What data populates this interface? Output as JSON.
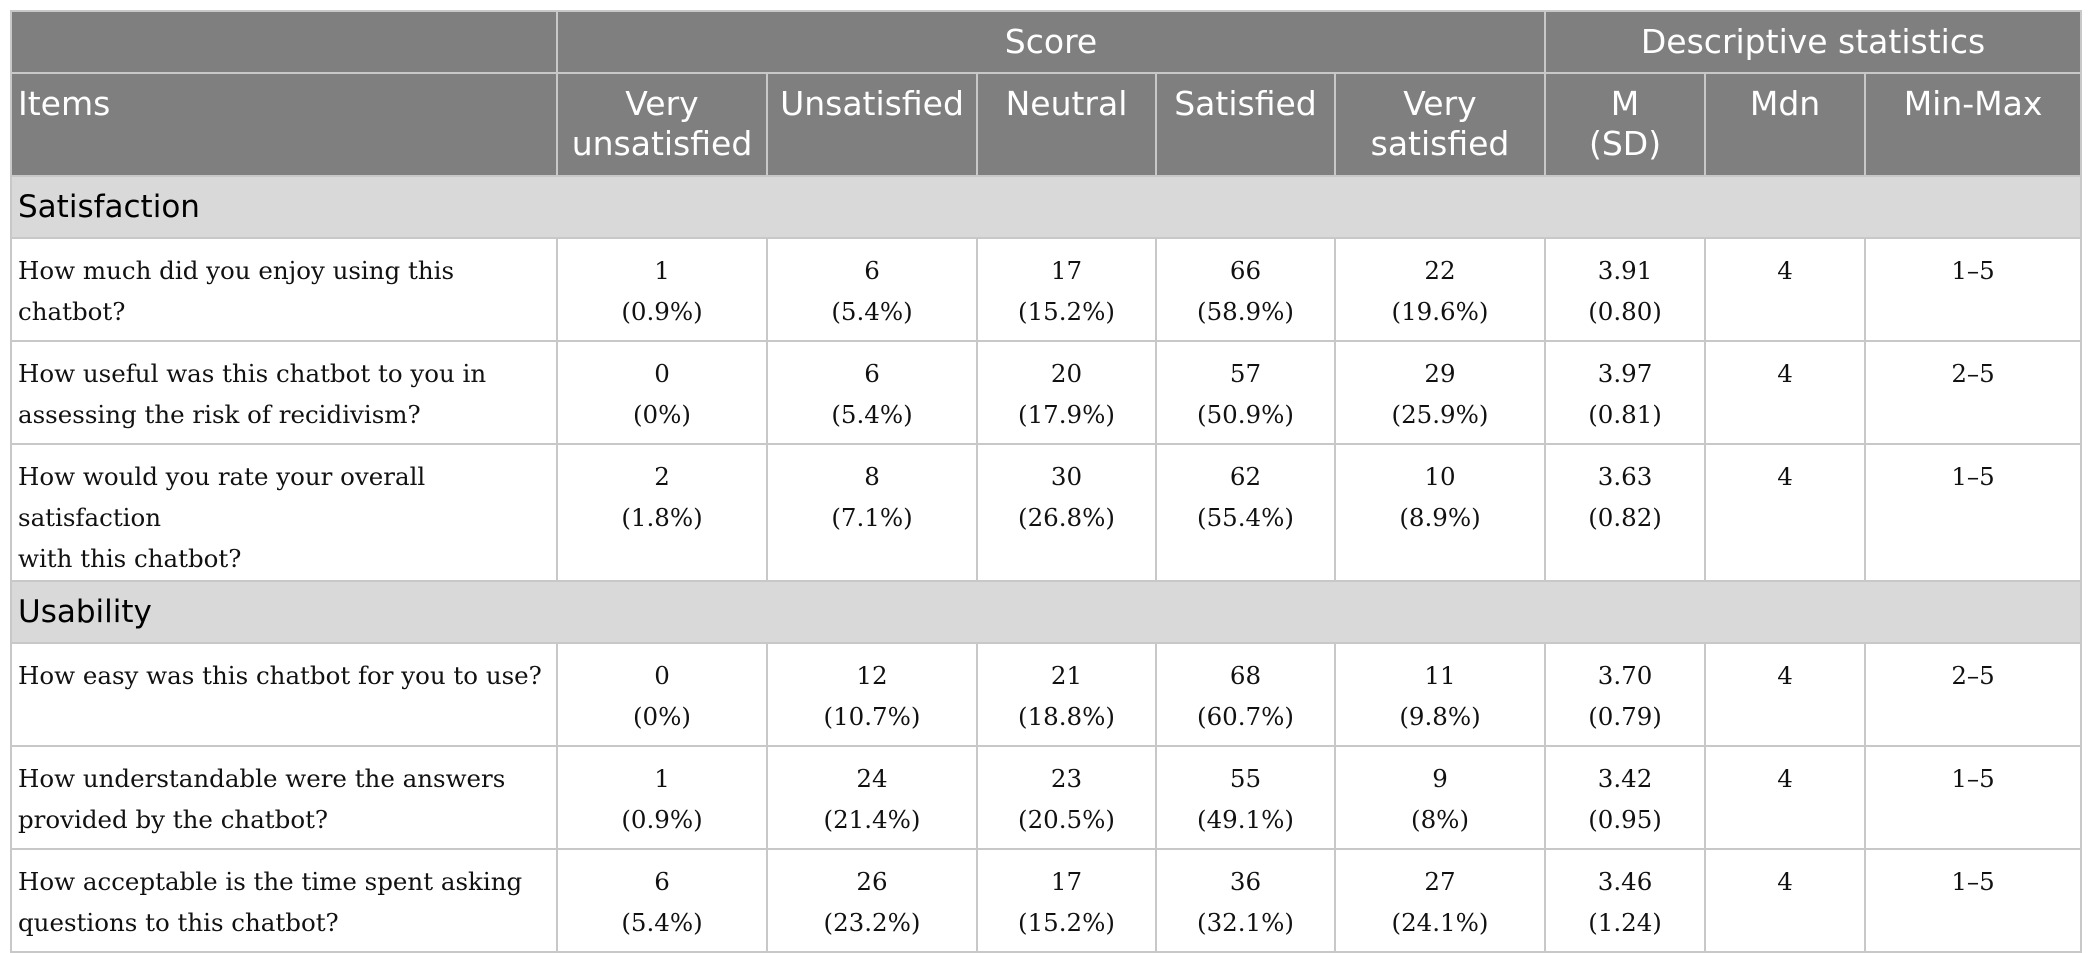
{
  "header": {
    "items": "Items",
    "score": "Score",
    "descriptive": "Descriptive statistics",
    "very_unsatisfied": [
      "Very",
      "unsatisfied"
    ],
    "unsatisfied": "Unsatisfied",
    "neutral": "Neutral",
    "satisfied": "Satisfied",
    "very_satisfied": [
      "Very",
      "satisfied"
    ],
    "m_sd": [
      "M",
      "(SD)"
    ],
    "mdn": "Mdn",
    "min_max": "Min-Max"
  },
  "sections": [
    {
      "title": "Satisfaction",
      "rows": [
        {
          "item": [
            "How much did you enjoy using this chatbot?"
          ],
          "scores": [
            [
              "1",
              "(0.9%)"
            ],
            [
              "6",
              "(5.4%)"
            ],
            [
              "17",
              "(15.2%)"
            ],
            [
              "66",
              "(58.9%)"
            ],
            [
              "22",
              "(19.6%)"
            ]
          ],
          "m": [
            "3.91",
            "(0.80)"
          ],
          "mdn": "4",
          "minmax": "1–5"
        },
        {
          "item": [
            "How useful was this chatbot to you in",
            "assessing the risk of recidivism?"
          ],
          "scores": [
            [
              "0",
              "(0%)"
            ],
            [
              "6",
              "(5.4%)"
            ],
            [
              "20",
              "(17.9%)"
            ],
            [
              "57",
              "(50.9%)"
            ],
            [
              "29",
              "(25.9%)"
            ]
          ],
          "m": [
            "3.97",
            "(0.81)"
          ],
          "mdn": "4",
          "minmax": "2–5"
        },
        {
          "item": [
            "How would you rate your overall satisfaction",
            "with this chatbot?"
          ],
          "scores": [
            [
              "2",
              "(1.8%)"
            ],
            [
              "8",
              "(7.1%)"
            ],
            [
              "30",
              "(26.8%)"
            ],
            [
              "62",
              "(55.4%)"
            ],
            [
              "10",
              "(8.9%)"
            ]
          ],
          "m": [
            "3.63",
            "(0.82)"
          ],
          "mdn": "4",
          "minmax": "1–5"
        }
      ]
    },
    {
      "title": "Usability",
      "rows": [
        {
          "item": [
            "How easy was this chatbot for you to use?"
          ],
          "scores": [
            [
              "0",
              "(0%)"
            ],
            [
              "12",
              "(10.7%)"
            ],
            [
              "21",
              "(18.8%)"
            ],
            [
              "68",
              "(60.7%)"
            ],
            [
              "11",
              "(9.8%)"
            ]
          ],
          "m": [
            "3.70",
            "(0.79)"
          ],
          "mdn": "4",
          "minmax": "2–5"
        },
        {
          "item": [
            "How understandable were the answers",
            "provided by the chatbot?"
          ],
          "scores": [
            [
              "1",
              "(0.9%)"
            ],
            [
              "24",
              "(21.4%)"
            ],
            [
              "23",
              "(20.5%)"
            ],
            [
              "55",
              "(49.1%)"
            ],
            [
              "9",
              "(8%)"
            ]
          ],
          "m": [
            "3.42",
            "(0.95)"
          ],
          "mdn": "4",
          "minmax": "1–5"
        },
        {
          "item": [
            "How acceptable is the time spent asking",
            "questions to this chatbot?"
          ],
          "scores": [
            [
              "6",
              "(5.4%)"
            ],
            [
              "26",
              "(23.2%)"
            ],
            [
              "17",
              "(15.2%)"
            ],
            [
              "36",
              "(32.1%)"
            ],
            [
              "27",
              "(24.1%)"
            ]
          ],
          "m": [
            "3.46",
            "(1.24)"
          ],
          "mdn": "4",
          "minmax": "1–5"
        }
      ]
    }
  ]
}
